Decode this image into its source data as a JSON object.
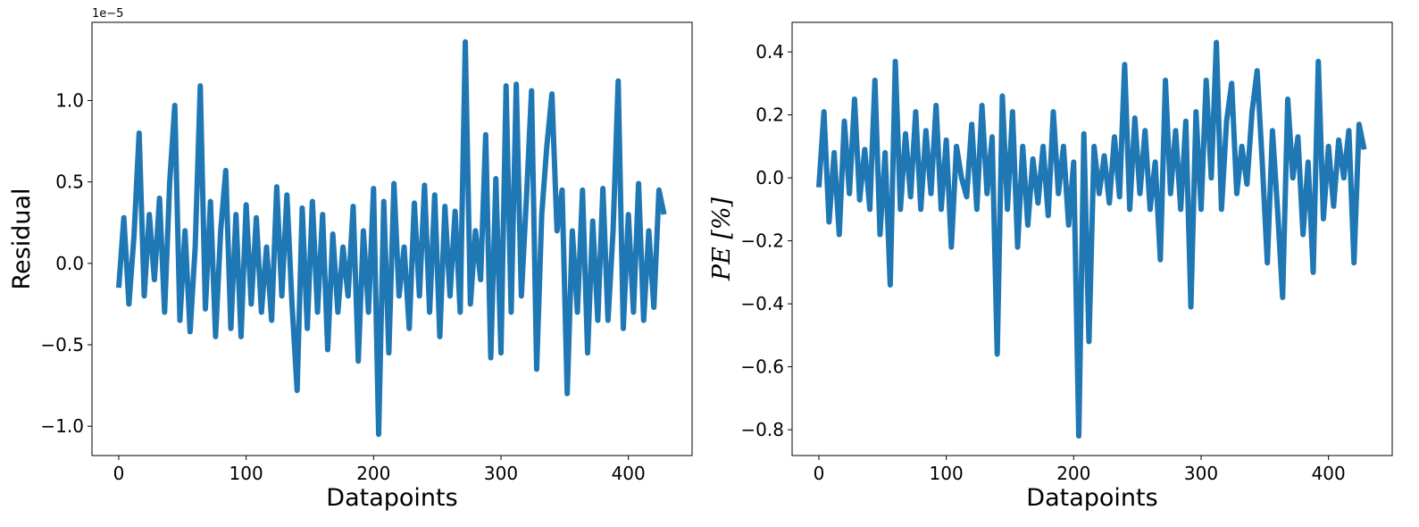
{
  "chart_data": [
    {
      "type": "line",
      "ylabel": "Residual",
      "xlabel": "Datapoints",
      "y_offset_label": "1e−5",
      "xlim": [
        -21,
        450
      ],
      "ylim": [
        -1.18,
        1.48
      ],
      "xticks": [
        0,
        100,
        200,
        300,
        400
      ],
      "yticks": [
        {
          "value": -1.0,
          "label": "−1.0"
        },
        {
          "value": -0.5,
          "label": "−0.5"
        },
        {
          "value": 0,
          "label": "0.0"
        },
        {
          "value": 0.5,
          "label": "0.5"
        },
        {
          "value": 1.0,
          "label": "1.0"
        }
      ],
      "x": [
        0,
        4,
        8,
        12,
        16,
        20,
        24,
        28,
        32,
        36,
        40,
        44,
        48,
        52,
        56,
        60,
        64,
        68,
        72,
        76,
        80,
        84,
        88,
        92,
        96,
        100,
        104,
        108,
        112,
        116,
        120,
        124,
        128,
        132,
        136,
        140,
        144,
        148,
        152,
        156,
        160,
        164,
        168,
        172,
        176,
        180,
        184,
        188,
        192,
        196,
        200,
        204,
        208,
        212,
        216,
        220,
        224,
        228,
        232,
        236,
        240,
        244,
        248,
        252,
        256,
        260,
        264,
        268,
        272,
        276,
        280,
        284,
        288,
        292,
        296,
        300,
        304,
        308,
        312,
        316,
        320,
        324,
        328,
        332,
        336,
        340,
        344,
        348,
        352,
        356,
        360,
        364,
        368,
        372,
        376,
        380,
        384,
        388,
        392,
        396,
        400,
        404,
        408,
        412,
        416,
        420,
        424,
        428
      ],
      "series": [
        {
          "color": "#1f77b4",
          "values": [
            -0.15,
            0.28,
            -0.25,
            0.17,
            0.8,
            -0.2,
            0.3,
            -0.1,
            0.4,
            -0.3,
            0.5,
            0.97,
            -0.35,
            0.2,
            -0.42,
            0.1,
            1.09,
            -0.28,
            0.38,
            -0.45,
            0.2,
            0.57,
            -0.4,
            0.3,
            -0.45,
            0.36,
            -0.25,
            0.28,
            -0.3,
            0.1,
            -0.35,
            0.47,
            -0.2,
            0.42,
            -0.25,
            -0.78,
            0.34,
            -0.4,
            0.38,
            -0.3,
            0.3,
            -0.53,
            0.18,
            -0.3,
            0.1,
            -0.2,
            0.35,
            -0.6,
            0.2,
            -0.3,
            0.46,
            -1.05,
            0.38,
            -0.55,
            0.49,
            -0.2,
            0.1,
            -0.4,
            0.37,
            -0.2,
            0.48,
            -0.3,
            0.42,
            -0.45,
            0.35,
            -0.2,
            0.32,
            -0.3,
            1.36,
            -0.25,
            0.2,
            -0.1,
            0.79,
            -0.58,
            0.52,
            -0.55,
            1.09,
            -0.3,
            1.1,
            -0.2,
            0.4,
            1.06,
            -0.65,
            0.3,
            0.72,
            1.04,
            0.2,
            0.45,
            -0.8,
            0.2,
            -0.3,
            0.45,
            -0.55,
            0.26,
            -0.35,
            0.46,
            -0.35,
            0.2,
            1.12,
            -0.4,
            0.3,
            -0.3,
            0.49,
            -0.35,
            0.2,
            -0.27,
            0.45,
            0.3
          ]
        }
      ]
    },
    {
      "type": "line",
      "ylabel": "PE [%]",
      "xlabel": "Datapoints",
      "xlim": [
        -21,
        450
      ],
      "ylim": [
        -0.882,
        0.494
      ],
      "xticks": [
        0,
        100,
        200,
        300,
        400
      ],
      "yticks": [
        {
          "value": -0.8,
          "label": "−0.8"
        },
        {
          "value": -0.6,
          "label": "−0.6"
        },
        {
          "value": -0.4,
          "label": "−0.4"
        },
        {
          "value": -0.2,
          "label": "−0.2"
        },
        {
          "value": 0,
          "label": "0.0"
        },
        0.2,
        0.4
      ],
      "x": [
        0,
        4,
        8,
        12,
        16,
        20,
        24,
        28,
        32,
        36,
        40,
        44,
        48,
        52,
        56,
        60,
        64,
        68,
        72,
        76,
        80,
        84,
        88,
        92,
        96,
        100,
        104,
        108,
        112,
        116,
        120,
        124,
        128,
        132,
        136,
        140,
        144,
        148,
        152,
        156,
        160,
        164,
        168,
        172,
        176,
        180,
        184,
        188,
        192,
        196,
        200,
        204,
        208,
        212,
        216,
        220,
        224,
        228,
        232,
        236,
        240,
        244,
        248,
        252,
        256,
        260,
        264,
        268,
        272,
        276,
        280,
        284,
        288,
        292,
        296,
        300,
        304,
        308,
        312,
        316,
        320,
        324,
        328,
        332,
        336,
        340,
        344,
        348,
        352,
        356,
        360,
        364,
        368,
        372,
        376,
        380,
        384,
        388,
        392,
        396,
        400,
        404,
        408,
        412,
        416,
        420,
        424,
        428
      ],
      "series": [
        {
          "color": "#1f77b4",
          "values": [
            -0.03,
            0.21,
            -0.14,
            0.08,
            -0.18,
            0.18,
            -0.05,
            0.25,
            -0.07,
            0.09,
            -0.1,
            0.31,
            -0.18,
            0.08,
            -0.34,
            0.37,
            -0.1,
            0.14,
            -0.06,
            0.21,
            -0.1,
            0.15,
            -0.05,
            0.23,
            -0.1,
            0.12,
            -0.22,
            0.1,
            0.0,
            -0.06,
            0.17,
            -0.1,
            0.23,
            -0.05,
            0.13,
            -0.56,
            0.26,
            -0.1,
            0.21,
            -0.22,
            0.1,
            -0.15,
            0.06,
            -0.08,
            0.1,
            -0.12,
            0.21,
            -0.05,
            0.1,
            -0.15,
            0.05,
            -0.82,
            0.14,
            -0.52,
            0.1,
            -0.05,
            0.07,
            -0.08,
            0.13,
            -0.06,
            0.36,
            -0.1,
            0.19,
            -0.05,
            0.15,
            -0.1,
            0.05,
            -0.26,
            0.31,
            -0.05,
            0.15,
            -0.1,
            0.18,
            -0.41,
            0.21,
            -0.1,
            0.31,
            0.0,
            0.43,
            -0.1,
            0.18,
            0.3,
            -0.05,
            0.1,
            -0.02,
            0.21,
            0.34,
            0.05,
            -0.27,
            0.15,
            -0.1,
            -0.38,
            0.25,
            0.0,
            0.13,
            -0.18,
            0.05,
            -0.3,
            0.37,
            -0.13,
            0.1,
            -0.09,
            0.12,
            0.0,
            0.15,
            -0.27,
            0.17,
            0.09
          ]
        }
      ]
    }
  ]
}
